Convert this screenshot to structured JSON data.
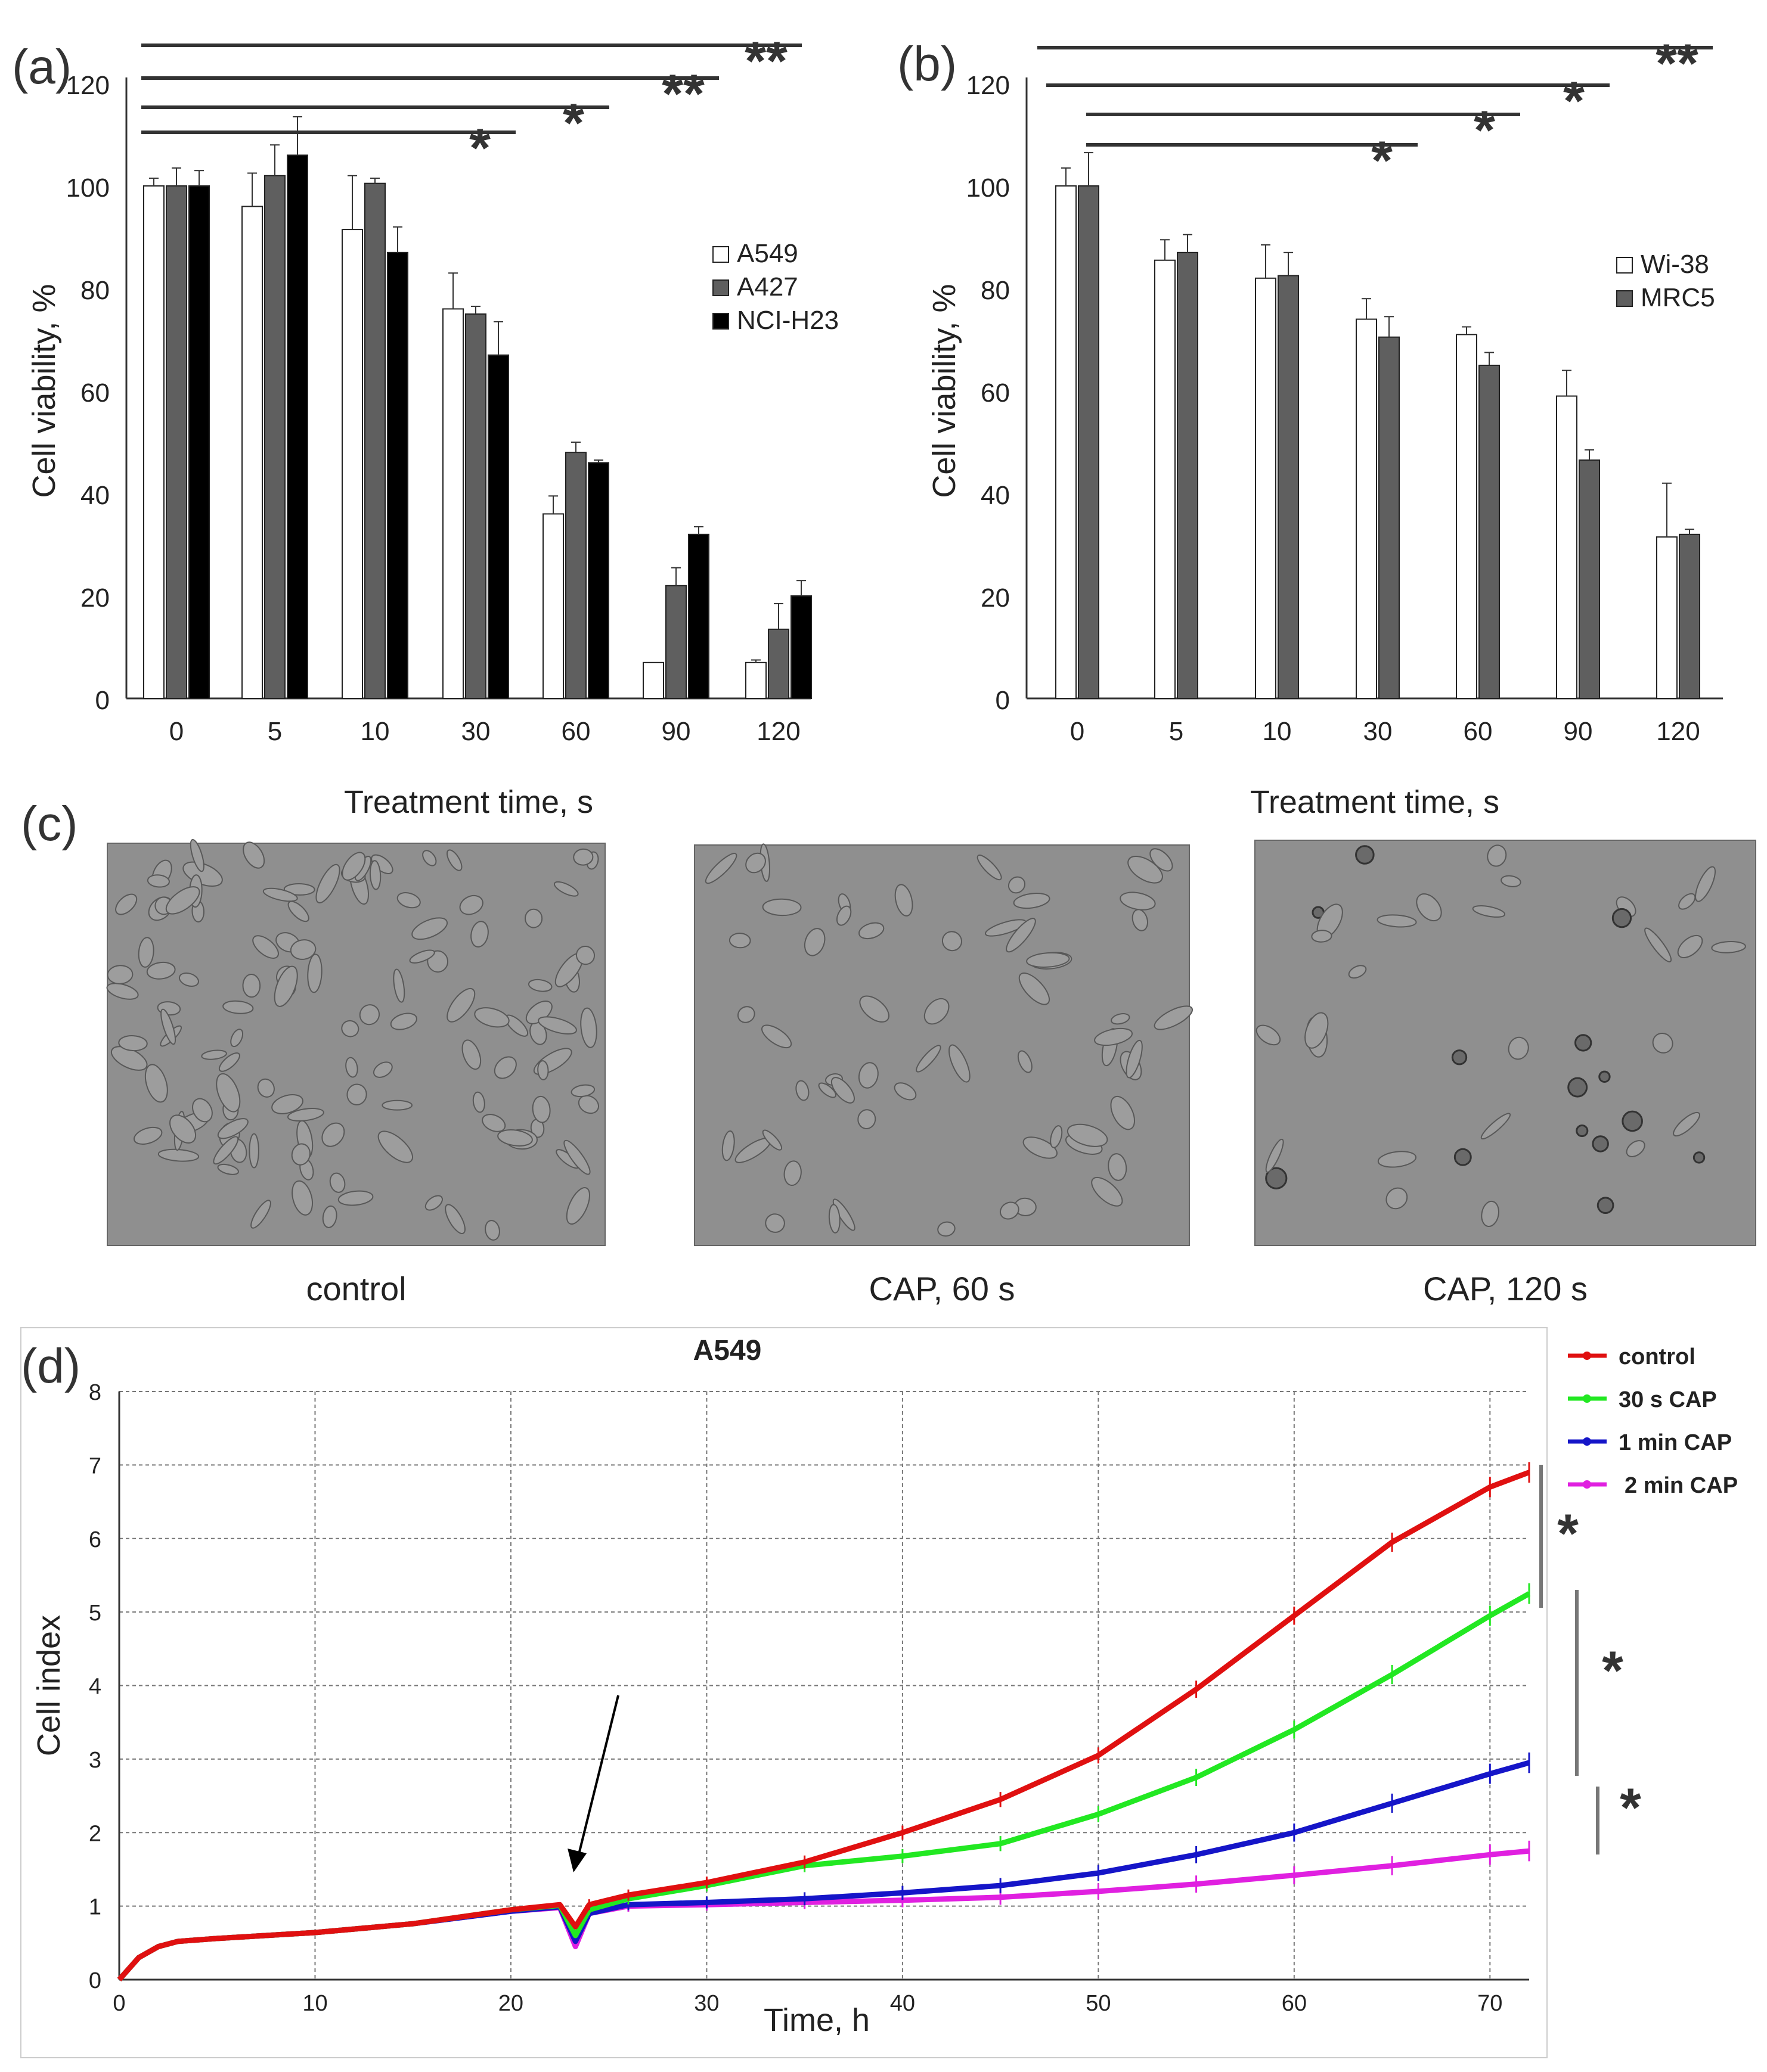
{
  "panel_labels": {
    "a": "(a)",
    "b": "(b)",
    "c": "(c)",
    "d": "(d)"
  },
  "micrographs": [
    {
      "caption": "control",
      "cells": "dense"
    },
    {
      "caption": "CAP, 60 s",
      "cells": "medium"
    },
    {
      "caption": "CAP, 120 s",
      "cells": "sparse-rounded"
    }
  ],
  "colors": {
    "bar_white": "#ffffff",
    "bar_gray": "#5f5f5f",
    "bar_black": "#000000",
    "control": "#e01010",
    "cap30": "#22e822",
    "cap1min": "#1515c8",
    "cap2min": "#e020e0",
    "significance": "#333333"
  },
  "chart_data": [
    {
      "id": "a",
      "type": "bar",
      "title": "",
      "xlabel": "Treatment time, s",
      "ylabel": "Cell viability, %",
      "ylim": [
        0,
        120
      ],
      "yticks": [
        0,
        20,
        40,
        60,
        80,
        100,
        120
      ],
      "categories": [
        "0",
        "5",
        "10",
        "30",
        "60",
        "90",
        "120"
      ],
      "legend_position": "right",
      "series": [
        {
          "name": "A549",
          "values": [
            100,
            96,
            91.5,
            76,
            36,
            7,
            7
          ],
          "errors": [
            1.5,
            6.5,
            10.5,
            7,
            3.5,
            0,
            0.5
          ]
        },
        {
          "name": "A427",
          "values": [
            100,
            102,
            100.5,
            75,
            48,
            22,
            13.5
          ],
          "errors": [
            3.5,
            6,
            1,
            1.5,
            2,
            3.5,
            5
          ]
        },
        {
          "name": "NCI-H23",
          "values": [
            100,
            106,
            87,
            67,
            46,
            32,
            20
          ],
          "errors": [
            3,
            7.5,
            5,
            6.5,
            0.5,
            1.5,
            3
          ]
        }
      ],
      "significance": [
        {
          "from": "0",
          "to": "30",
          "label": "*"
        },
        {
          "from": "0",
          "to": "60",
          "label": "*"
        },
        {
          "from": "0",
          "to": "90",
          "label": "**"
        },
        {
          "from": "0",
          "to": "120",
          "label": "**"
        }
      ]
    },
    {
      "id": "b",
      "type": "bar",
      "title": "",
      "xlabel": "Treatment time, s",
      "ylabel": "Cell viability, %",
      "ylim": [
        0,
        120
      ],
      "yticks": [
        0,
        20,
        40,
        60,
        80,
        100,
        120
      ],
      "categories": [
        "0",
        "5",
        "10",
        "30",
        "60",
        "90",
        "120"
      ],
      "legend_position": "right",
      "series": [
        {
          "name": "Wi-38",
          "values": [
            100,
            85.5,
            82,
            74,
            71,
            59,
            31.5
          ],
          "errors": [
            3.5,
            4,
            6.5,
            4,
            1.5,
            5,
            10.5
          ]
        },
        {
          "name": "MRC5",
          "values": [
            100,
            87,
            82.5,
            70.5,
            65,
            46.5,
            32
          ],
          "errors": [
            6.5,
            3.5,
            4.5,
            4,
            2.5,
            2,
            1
          ]
        }
      ],
      "significance": [
        {
          "from": "0",
          "to": "30",
          "label": "*"
        },
        {
          "from": "0",
          "to": "60",
          "label": "*"
        },
        {
          "from": "0",
          "to": "90",
          "label": "*"
        },
        {
          "from": "0",
          "to": "120",
          "label": "**"
        }
      ]
    },
    {
      "id": "d",
      "type": "line",
      "title": "A549",
      "xlabel": "Time, h",
      "ylabel": "Cell index",
      "xlim": [
        0,
        72
      ],
      "ylim": [
        0,
        8
      ],
      "xticks": [
        0,
        10,
        20,
        30,
        40,
        50,
        60,
        70
      ],
      "yticks": [
        0,
        1,
        2,
        3,
        4,
        5,
        6,
        7,
        8
      ],
      "grid": true,
      "legend_position": "top-right",
      "annotation": {
        "type": "arrow",
        "at_time": 23.2
      },
      "series": [
        {
          "name": "control",
          "x": [
            0,
            1,
            2,
            3,
            5,
            10,
            15,
            20,
            22.5,
            23.3,
            24,
            26,
            30,
            35,
            40,
            45,
            50,
            55,
            60,
            65,
            70,
            72
          ],
          "y": [
            0,
            0.3,
            0.45,
            0.52,
            0.56,
            0.64,
            0.76,
            0.95,
            1.02,
            0.72,
            1.02,
            1.15,
            1.32,
            1.6,
            2.0,
            2.45,
            3.05,
            3.95,
            4.95,
            5.95,
            6.7,
            6.9
          ]
        },
        {
          "name": "30 s CAP",
          "x": [
            0,
            1,
            2,
            3,
            5,
            10,
            15,
            20,
            22.5,
            23.3,
            24,
            26,
            30,
            35,
            40,
            45,
            50,
            55,
            60,
            65,
            70,
            72
          ],
          "y": [
            0,
            0.3,
            0.45,
            0.52,
            0.56,
            0.64,
            0.76,
            0.95,
            1.01,
            0.6,
            0.95,
            1.1,
            1.28,
            1.55,
            1.68,
            1.85,
            2.25,
            2.75,
            3.4,
            4.15,
            4.95,
            5.25
          ]
        },
        {
          "name": "1 min CAP",
          "x": [
            0,
            1,
            2,
            3,
            5,
            10,
            15,
            20,
            22.5,
            23.3,
            24,
            26,
            30,
            35,
            40,
            45,
            50,
            55,
            60,
            65,
            70,
            72
          ],
          "y": [
            0,
            0.3,
            0.45,
            0.52,
            0.56,
            0.64,
            0.76,
            0.93,
            0.99,
            0.52,
            0.9,
            1.02,
            1.05,
            1.1,
            1.18,
            1.28,
            1.45,
            1.7,
            2.0,
            2.4,
            2.8,
            2.95
          ]
        },
        {
          "name": "2 min CAP",
          "x": [
            0,
            1,
            2,
            3,
            5,
            10,
            15,
            20,
            22.5,
            23.3,
            24,
            26,
            30,
            35,
            40,
            45,
            50,
            55,
            60,
            65,
            70,
            72
          ],
          "y": [
            0,
            0.3,
            0.45,
            0.52,
            0.56,
            0.64,
            0.76,
            0.93,
            0.98,
            0.45,
            0.9,
            1.0,
            1.02,
            1.05,
            1.08,
            1.12,
            1.2,
            1.3,
            1.42,
            1.55,
            1.7,
            1.75
          ]
        }
      ],
      "significance": [
        {
          "between": [
            "control",
            "30 s CAP"
          ],
          "label": "*"
        },
        {
          "between": [
            "30 s CAP",
            "1 min CAP"
          ],
          "label": "*"
        },
        {
          "between": [
            "1 min CAP",
            "2 min CAP"
          ],
          "label": "*"
        }
      ]
    }
  ]
}
